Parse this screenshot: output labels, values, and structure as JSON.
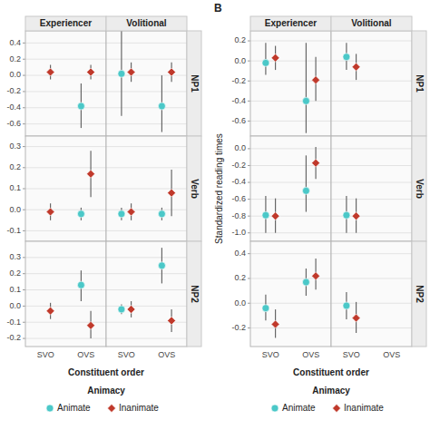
{
  "chart_data": [
    {
      "type": "errorbar",
      "title": "Experiencer",
      "categories": [
        "SVO",
        "OVS"
      ],
      "series": [
        {
          "name": "Animate",
          "color": "#4BC8C8",
          "marker": "circle",
          "values": [
            null,
            -0.38
          ],
          "error_low": [
            null,
            -0.65
          ],
          "error_high": [
            null,
            -0.1
          ]
        },
        {
          "name": "Inanimate",
          "color": "#C0392B",
          "marker": "diamond",
          "values": [
            0.04,
            0.04
          ],
          "error_low": [
            -0.05,
            -0.05
          ],
          "error_high": [
            0.13,
            0.13
          ]
        }
      ],
      "ylim": [
        -0.75,
        0.55
      ],
      "yticks": [
        -0.6,
        -0.4,
        -0.2,
        {
          "value": 0.0,
          "label": "0.0"
        },
        0.2,
        0.4
      ],
      "grid": true,
      "tick_labels": "y"
    },
    {
      "type": "errorbar",
      "title": "Volitional",
      "annotations": [
        "NP1"
      ],
      "categories": [
        "SVO",
        "OVS"
      ],
      "series": [
        {
          "name": "Animate",
          "color": "#4BC8C8",
          "marker": "circle",
          "values": [
            0.02,
            -0.38
          ],
          "error_low": [
            -0.5,
            -0.7
          ],
          "error_high": [
            0.55,
            0.0
          ]
        },
        {
          "name": "Inanimate",
          "color": "#C0392B",
          "marker": "diamond",
          "values": [
            0.04,
            0.04
          ],
          "error_low": [
            -0.08,
            -0.08
          ],
          "error_high": [
            0.16,
            0.16
          ]
        }
      ],
      "ylim": [
        -0.75,
        0.55
      ],
      "yticks": [
        -0.6,
        -0.4,
        -0.2,
        0,
        0.2,
        0.4
      ],
      "grid": true,
      "tick_labels": false
    },
    {
      "type": "errorbar",
      "categories": [
        "SVO",
        "OVS"
      ],
      "series": [
        {
          "name": "Animate",
          "color": "#4BC8C8",
          "marker": "circle",
          "values": [
            null,
            -0.02
          ],
          "error_low": [
            null,
            -0.05
          ],
          "error_high": [
            null,
            0.01
          ]
        },
        {
          "name": "Inanimate",
          "color": "#C0392B",
          "marker": "diamond",
          "values": [
            -0.01,
            0.17
          ],
          "error_low": [
            -0.05,
            0.06
          ],
          "error_high": [
            0.03,
            0.28
          ]
        }
      ],
      "ylim": [
        -0.15,
        0.35
      ],
      "yticks": [
        -0.1,
        {
          "value": 0.0,
          "label": "0.0"
        },
        0.1,
        0.2,
        0.3
      ],
      "grid": true,
      "tick_labels": "y"
    },
    {
      "type": "errorbar",
      "annotations": [
        "Verb"
      ],
      "categories": [
        "SVO",
        "OVS"
      ],
      "series": [
        {
          "name": "Animate",
          "color": "#4BC8C8",
          "marker": "circle",
          "values": [
            -0.02,
            -0.02
          ],
          "error_low": [
            -0.05,
            -0.05
          ],
          "error_high": [
            0.01,
            0.01
          ]
        },
        {
          "name": "Inanimate",
          "color": "#C0392B",
          "marker": "diamond",
          "values": [
            -0.01,
            0.08
          ],
          "error_low": [
            -0.05,
            -0.03
          ],
          "error_high": [
            0.03,
            0.19
          ]
        }
      ],
      "ylim": [
        -0.15,
        0.35
      ],
      "yticks": [
        -0.1,
        0,
        0.1,
        0.2,
        0.3
      ],
      "grid": true,
      "tick_labels": false
    },
    {
      "type": "errorbar",
      "x_label": "Constituent order",
      "legend": "bottom",
      "annotations": [
        "Animacy"
      ],
      "categories": [
        "SVO",
        "OVS"
      ],
      "series": [
        {
          "name": "Animate",
          "color": "#4BC8C8",
          "marker": "circle",
          "values": [
            null,
            0.13
          ],
          "error_low": [
            null,
            0.03
          ],
          "error_high": [
            null,
            0.22
          ]
        },
        {
          "name": "Inanimate",
          "color": "#C0392B",
          "marker": "diamond",
          "values": [
            -0.03,
            -0.12
          ],
          "error_low": [
            -0.08,
            -0.2
          ],
          "error_high": [
            0.02,
            -0.03
          ]
        }
      ],
      "ylim": [
        -0.25,
        0.4
      ],
      "yticks": [
        -0.2,
        -0.1,
        {
          "value": 0.0,
          "label": "0.0"
        },
        0.1,
        0.2,
        0.3
      ],
      "grid": true
    },
    {
      "type": "errorbar",
      "annotations": [
        "NP2"
      ],
      "categories": [
        "SVO",
        "OVS"
      ],
      "series": [
        {
          "name": "Animate",
          "color": "#4BC8C8",
          "marker": "circle",
          "values": [
            -0.02,
            0.25
          ],
          "error_low": [
            -0.05,
            0.14
          ],
          "error_high": [
            0.01,
            0.36
          ]
        },
        {
          "name": "Inanimate",
          "color": "#C0392B",
          "marker": "diamond",
          "values": [
            -0.02,
            -0.09
          ],
          "error_low": [
            -0.07,
            -0.16
          ],
          "error_high": [
            0.03,
            -0.02
          ]
        }
      ],
      "ylim": [
        -0.25,
        0.4
      ],
      "yticks": [
        -0.2,
        -0.1,
        0,
        0.1,
        0.2,
        0.3
      ],
      "grid": true,
      "tick_labels": "x"
    },
    {
      "type": "errorbar",
      "title": "Experiencer",
      "annotations": [
        "B"
      ],
      "categories": [
        "SVO",
        "OVS"
      ],
      "series": [
        {
          "name": "Animate",
          "color": "#4BC8C8",
          "marker": "circle",
          "values": [
            -0.02,
            -0.4
          ],
          "error_low": [
            -0.14,
            -0.72
          ],
          "error_high": [
            0.18,
            0.18
          ]
        },
        {
          "name": "Inanimate",
          "color": "#C0392B",
          "marker": "diamond",
          "values": [
            0.03,
            -0.19
          ],
          "error_low": [
            -0.09,
            -0.4
          ],
          "error_high": [
            0.15,
            0.04
          ]
        }
      ],
      "ylim": [
        -0.75,
        0.3
      ],
      "yticks": [
        -0.6,
        -0.4,
        -0.2,
        {
          "value": 0.0,
          "label": "0.0"
        },
        0.2
      ],
      "grid": true,
      "tick_labels": "y"
    },
    {
      "type": "errorbar",
      "title": "Volitional",
      "annotations": [
        "NP1"
      ],
      "categories": [
        "SVO",
        "OVS"
      ],
      "series": [
        {
          "name": "Animate",
          "color": "#4BC8C8",
          "marker": "circle",
          "values": [
            0.04,
            null
          ],
          "error_low": [
            -0.09,
            null
          ],
          "error_high": [
            0.18,
            null
          ]
        },
        {
          "name": "Inanimate",
          "color": "#C0392B",
          "marker": "diamond",
          "values": [
            -0.06,
            null
          ],
          "error_low": [
            -0.19,
            null
          ],
          "error_high": [
            0.07,
            null
          ]
        }
      ],
      "ylim": [
        -0.75,
        0.3
      ],
      "yticks": [
        -0.6,
        -0.4,
        -0.2,
        0,
        0.2
      ],
      "grid": true,
      "tick_labels": false
    },
    {
      "type": "errorbar",
      "y_label": "Standardized reading times",
      "categories": [
        "SVO",
        "OVS"
      ],
      "series": [
        {
          "name": "Animate",
          "color": "#4BC8C8",
          "marker": "circle",
          "values": [
            -0.79,
            -0.5
          ],
          "error_low": [
            -1.0,
            -0.75
          ],
          "error_high": [
            -0.56,
            -0.08
          ]
        },
        {
          "name": "Inanimate",
          "color": "#C0392B",
          "marker": "diamond",
          "values": [
            -0.8,
            -0.17
          ],
          "error_low": [
            -1.0,
            -0.36
          ],
          "error_high": [
            -0.59,
            0.02
          ]
        }
      ],
      "ylim": [
        -1.1,
        0.15
      ],
      "yticks": [
        {
          "value": -1.0,
          "label": "-1.0"
        },
        -0.8,
        -0.6,
        -0.4,
        -0.2,
        {
          "value": 0.0,
          "label": "0.0"
        }
      ],
      "grid": true,
      "tick_labels": "y"
    },
    {
      "type": "errorbar",
      "annotations": [
        "Verb"
      ],
      "categories": [
        "SVO",
        "OVS"
      ],
      "series": [
        {
          "name": "Animate",
          "color": "#4BC8C8",
          "marker": "circle",
          "values": [
            -0.79,
            null
          ],
          "error_low": [
            -1.0,
            null
          ],
          "error_high": [
            -0.56,
            null
          ]
        },
        {
          "name": "Inanimate",
          "color": "#C0392B",
          "marker": "diamond",
          "values": [
            -0.8,
            null
          ],
          "error_low": [
            -1.0,
            null
          ],
          "error_high": [
            -0.59,
            null
          ]
        }
      ],
      "ylim": [
        -1.1,
        0.15
      ],
      "yticks": [
        -1,
        -0.8,
        -0.6,
        -0.4,
        -0.2,
        0
      ],
      "grid": true,
      "tick_labels": false
    },
    {
      "type": "errorbar",
      "x_label": "Constituent order",
      "legend": "bottom",
      "annotations": [
        "Animacy"
      ],
      "categories": [
        "SVO",
        "OVS"
      ],
      "series": [
        {
          "name": "Animate",
          "color": "#4BC8C8",
          "marker": "circle",
          "values": [
            -0.04,
            0.17
          ],
          "error_low": [
            -0.14,
            0.06
          ],
          "error_high": [
            0.07,
            0.28
          ]
        },
        {
          "name": "Inanimate",
          "color": "#C0392B",
          "marker": "diamond",
          "values": [
            -0.17,
            0.22
          ],
          "error_low": [
            -0.28,
            0.11
          ],
          "error_high": [
            -0.05,
            0.36
          ]
        }
      ],
      "ylim": [
        -0.35,
        0.5
      ],
      "yticks": [
        -0.2,
        {
          "value": 0.0,
          "label": "0.0"
        },
        0.2,
        0.4
      ],
      "grid": true
    },
    {
      "type": "errorbar",
      "annotations": [
        "NP2"
      ],
      "categories": [
        "SVO",
        "OVS"
      ],
      "series": [
        {
          "name": "Animate",
          "color": "#4BC8C8",
          "marker": "circle",
          "values": [
            -0.02,
            null
          ],
          "error_low": [
            -0.13,
            null
          ],
          "error_high": [
            0.09,
            null
          ]
        },
        {
          "name": "Inanimate",
          "color": "#C0392B",
          "marker": "diamond",
          "values": [
            -0.12,
            null
          ],
          "error_low": [
            -0.24,
            null
          ],
          "error_high": [
            0.01,
            null
          ]
        }
      ],
      "ylim": [
        -0.35,
        0.5
      ],
      "yticks": [
        -0.2,
        0,
        0.2,
        0.4
      ],
      "grid": true,
      "tick_labels": "x"
    }
  ]
}
